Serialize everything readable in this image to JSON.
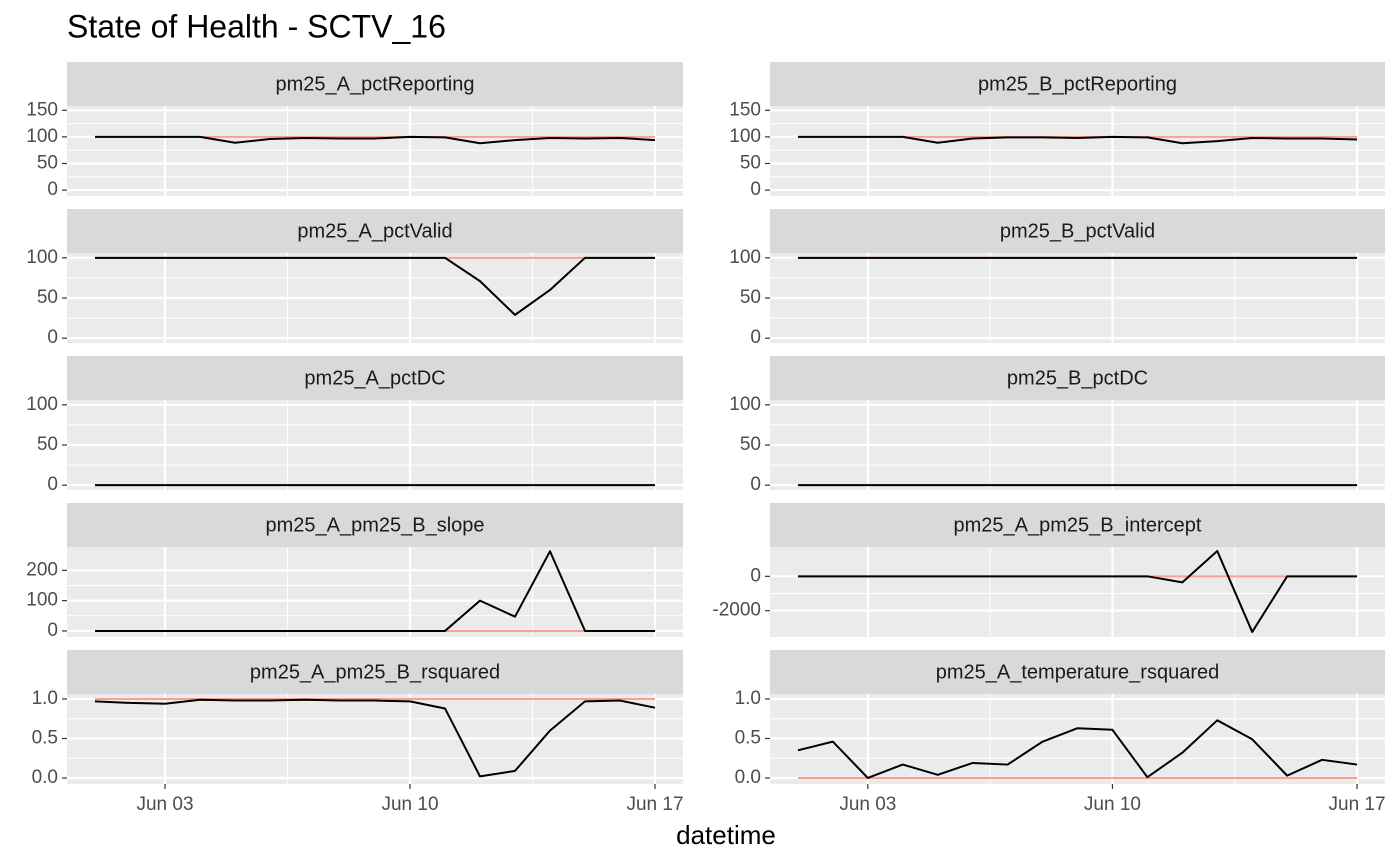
{
  "title": "State of Health - SCTV_16",
  "x_axis": {
    "title": "datetime",
    "xlim": [
      0.2,
      17.8
    ],
    "xticks": [
      {
        "value": 3,
        "label": "Jun 03"
      },
      {
        "value": 10,
        "label": "Jun 10"
      },
      {
        "value": 17,
        "label": "Jun 17"
      }
    ],
    "x": [
      1,
      2,
      3,
      4,
      5,
      6,
      7,
      8,
      9,
      10,
      11,
      12,
      13,
      14,
      15,
      16,
      17
    ]
  },
  "chart_data": [
    {
      "type": "line",
      "title": "pm25_A_pctReporting",
      "ylim": [
        -11,
        158
      ],
      "yticks": [
        0,
        50,
        100,
        150
      ],
      "hline": 100,
      "hline_color": "#f8a091",
      "series": [
        {
          "color": "#000000",
          "values": [
            100,
            100,
            100,
            100,
            89,
            96,
            98,
            97,
            97,
            100,
            99,
            88,
            94,
            98,
            97,
            98,
            94
          ]
        }
      ]
    },
    {
      "type": "line",
      "title": "pm25_B_pctReporting",
      "ylim": [
        -11,
        158
      ],
      "yticks": [
        0,
        50,
        100,
        150
      ],
      "hline": 100,
      "hline_color": "#f8a091",
      "series": [
        {
          "color": "#000000",
          "values": [
            100,
            100,
            100,
            100,
            89,
            97,
            99,
            99,
            98,
            100,
            99,
            88,
            92,
            98,
            97,
            97,
            95
          ]
        }
      ]
    },
    {
      "type": "line",
      "title": "pm25_A_pctValid",
      "ylim": [
        -6,
        106
      ],
      "yticks": [
        0,
        50,
        100
      ],
      "hline": 100,
      "hline_color": "#f8a091",
      "series": [
        {
          "color": "#000000",
          "values": [
            100,
            100,
            100,
            100,
            100,
            100,
            100,
            100,
            100,
            100,
            100,
            71,
            29,
            60,
            100,
            100,
            100
          ]
        }
      ]
    },
    {
      "type": "line",
      "title": "pm25_B_pctValid",
      "ylim": [
        -6,
        106
      ],
      "yticks": [
        0,
        50,
        100
      ],
      "hline": 100,
      "hline_color": "#f8a091",
      "series": [
        {
          "color": "#000000",
          "values": [
            100,
            100,
            100,
            100,
            100,
            100,
            100,
            100,
            100,
            100,
            100,
            100,
            100,
            100,
            100,
            100,
            100
          ]
        }
      ]
    },
    {
      "type": "line",
      "title": "pm25_A_pctDC",
      "ylim": [
        -6,
        106
      ],
      "yticks": [
        0,
        50,
        100
      ],
      "hline": 0,
      "hline_color": "#f8a091",
      "series": [
        {
          "color": "#000000",
          "values": [
            0,
            0,
            0,
            0,
            0,
            0,
            0,
            0,
            0,
            0,
            0,
            0,
            0,
            0,
            0,
            0,
            0
          ]
        }
      ]
    },
    {
      "type": "line",
      "title": "pm25_B_pctDC",
      "ylim": [
        -6,
        106
      ],
      "yticks": [
        0,
        50,
        100
      ],
      "hline": 0,
      "hline_color": "#f8a091",
      "series": [
        {
          "color": "#000000",
          "values": [
            0,
            0,
            0,
            0,
            0,
            0,
            0,
            0,
            0,
            0,
            0,
            0,
            0,
            0,
            0,
            0,
            0
          ]
        }
      ]
    },
    {
      "type": "line",
      "title": "pm25_A_pm25_B_slope",
      "ylim": [
        -20,
        277
      ],
      "yticks": [
        0,
        100,
        200
      ],
      "hline": 0,
      "hline_color": "#f8a091",
      "series": [
        {
          "color": "#000000",
          "values": [
            0,
            0,
            0,
            0,
            0,
            0,
            0,
            0,
            0,
            0,
            0,
            100,
            47,
            263,
            0,
            0,
            0
          ]
        }
      ]
    },
    {
      "type": "line",
      "title": "pm25_A_pm25_B_intercept",
      "ylim": [
        -3530,
        1706
      ],
      "yticks": [
        -2000,
        0
      ],
      "hline": 0,
      "hline_color": "#f8a091",
      "series": [
        {
          "color": "#000000",
          "values": [
            0,
            0,
            0,
            0,
            0,
            0,
            0,
            0,
            0,
            0,
            0,
            -350,
            1470,
            -3235,
            0,
            0,
            0
          ]
        }
      ]
    },
    {
      "type": "line",
      "title": "pm25_A_pm25_B_rsquared",
      "ylim": [
        -0.076,
        1.063
      ],
      "yticks": [
        {
          "value": 0,
          "label": "0.0"
        },
        {
          "value": 0.5,
          "label": "0.5"
        },
        {
          "value": 1,
          "label": "1.0"
        }
      ],
      "hline": 1,
      "hline_color": "#f8a091",
      "series": [
        {
          "color": "#000000",
          "values": [
            0.97,
            0.95,
            0.94,
            0.99,
            0.98,
            0.98,
            0.99,
            0.98,
            0.98,
            0.97,
            0.88,
            0.02,
            0.09,
            0.6,
            0.97,
            0.98,
            0.89
          ]
        }
      ]
    },
    {
      "type": "line",
      "title": "pm25_A_temperature_rsquared",
      "ylim": [
        -0.076,
        1.063
      ],
      "yticks": [
        {
          "value": 0,
          "label": "0.0"
        },
        {
          "value": 0.5,
          "label": "0.5"
        },
        {
          "value": 1,
          "label": "1.0"
        }
      ],
      "hline": 0,
      "hline_color": "#f8a091",
      "series": [
        {
          "color": "#000000",
          "values": [
            0.35,
            0.46,
            0.0,
            0.17,
            0.04,
            0.19,
            0.17,
            0.46,
            0.63,
            0.61,
            0.01,
            0.32,
            0.73,
            0.49,
            0.03,
            0.23,
            0.17
          ]
        }
      ]
    }
  ]
}
